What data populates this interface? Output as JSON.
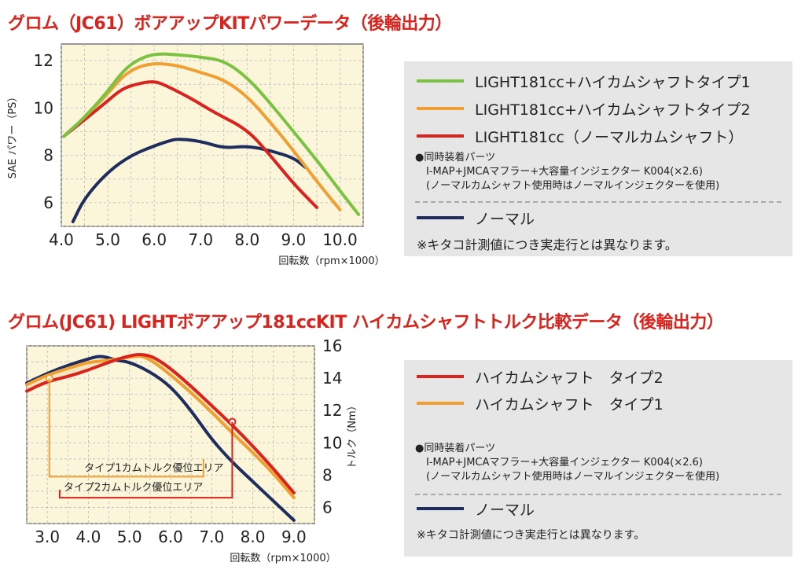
{
  "chart_data": [
    {
      "type": "line",
      "title": "グロム（JC61）ボアアップKITパワーデータ（後輪出力）",
      "xlabel": "回転数（rpm×1000）",
      "ylabel": "SAE パワー（PS）",
      "xlim": [
        4.0,
        10.5
      ],
      "ylim": [
        5.0,
        12.7
      ],
      "x_ticks": [
        "4.0",
        "5.0",
        "6.0",
        "7.0",
        "8.0",
        "9.0",
        "10.0"
      ],
      "y_ticks": [
        "6",
        "8",
        "10",
        "12"
      ],
      "x_tick_values": [
        4,
        5,
        6,
        7,
        8,
        9,
        10
      ],
      "y_tick_values": [
        6,
        8,
        10,
        12
      ],
      "series": [
        {
          "name": "LIGHT181cc+ハイカムシャフトタイプ1",
          "color": "#7cc242",
          "x": [
            4.05,
            4.5,
            5.0,
            5.3,
            5.6,
            6.0,
            6.5,
            7.0,
            7.5,
            8.0,
            8.5,
            9.0,
            9.5,
            10.0,
            10.4
          ],
          "y": [
            8.8,
            9.6,
            10.7,
            11.5,
            12.0,
            12.3,
            12.25,
            12.15,
            12.0,
            11.3,
            10.2,
            9.0,
            7.8,
            6.5,
            5.5
          ]
        },
        {
          "name": "LIGHT181cc+ハイカムシャフトタイプ2",
          "color": "#f0a033",
          "x": [
            4.05,
            4.5,
            5.0,
            5.3,
            5.6,
            6.0,
            6.5,
            7.0,
            7.5,
            8.0,
            8.5,
            9.0,
            9.5,
            10.0
          ],
          "y": [
            8.8,
            9.6,
            10.6,
            11.3,
            11.7,
            11.9,
            11.8,
            11.5,
            11.2,
            10.5,
            9.4,
            8.2,
            6.9,
            5.7
          ]
        },
        {
          "name": "LIGHT181cc（ノーマルカムシャフト）",
          "color": "#d9231d",
          "x": [
            4.05,
            4.5,
            5.0,
            5.3,
            5.6,
            6.0,
            6.3,
            6.8,
            7.3,
            8.0,
            8.5,
            9.0,
            9.5
          ],
          "y": [
            8.8,
            9.5,
            10.3,
            10.8,
            11.0,
            11.15,
            10.9,
            10.4,
            9.8,
            9.1,
            8.0,
            6.8,
            5.8
          ]
        },
        {
          "name": "ノーマル",
          "color": "#1f2d5e",
          "x": [
            4.25,
            4.5,
            5.0,
            5.5,
            6.0,
            6.3,
            6.5,
            7.0,
            7.5,
            8.0,
            8.5,
            9.0,
            9.25
          ],
          "y": [
            5.2,
            6.2,
            7.3,
            8.0,
            8.4,
            8.6,
            8.7,
            8.6,
            8.3,
            8.4,
            8.2,
            7.9,
            7.5
          ]
        }
      ]
    },
    {
      "type": "line",
      "title": "グロム(JC61) LIGHTボアアップ181ccKIT ハイカムシャフトトルク比較データ（後輪出力）",
      "xlabel": "回転数（rpm×1000）",
      "ylabel": "トルク（Nm）",
      "xlim": [
        2.5,
        9.5
      ],
      "ylim": [
        5.0,
        16.0
      ],
      "x_ticks": [
        "3.0",
        "4.0",
        "5.0",
        "6.0",
        "7.0",
        "8.0",
        "9.0"
      ],
      "y_ticks": [
        "6",
        "8",
        "10",
        "12",
        "14",
        "16"
      ],
      "x_tick_values": [
        3,
        4,
        5,
        6,
        7,
        8,
        9
      ],
      "y_tick_values": [
        6,
        8,
        10,
        12,
        14,
        16
      ],
      "series": [
        {
          "name": "ハイカムシャフト　タイプ2",
          "color": "#d9231d",
          "x": [
            2.5,
            3.0,
            3.5,
            4.0,
            4.5,
            5.0,
            5.3,
            5.6,
            6.0,
            6.5,
            7.0,
            7.5,
            8.0,
            8.5,
            9.0
          ],
          "y": [
            13.2,
            13.8,
            14.1,
            14.5,
            15.0,
            15.4,
            15.5,
            15.3,
            14.6,
            13.5,
            12.3,
            11.1,
            9.8,
            8.4,
            6.9
          ]
        },
        {
          "name": "ハイカムシャフト　タイプ1",
          "color": "#f0a033",
          "x": [
            2.5,
            3.0,
            3.5,
            4.0,
            4.5,
            5.0,
            5.3,
            5.6,
            6.0,
            6.5,
            7.0,
            7.5,
            8.0,
            8.5,
            9.0
          ],
          "y": [
            13.6,
            14.2,
            14.6,
            15.0,
            15.1,
            15.3,
            15.4,
            15.0,
            14.2,
            13.1,
            11.9,
            10.6,
            9.4,
            8.1,
            6.6
          ]
        },
        {
          "name": "ノーマル",
          "color": "#1f2d5e",
          "x": [
            2.5,
            3.0,
            3.5,
            4.0,
            4.3,
            4.7,
            5.0,
            5.5,
            6.0,
            6.5,
            7.0,
            7.5,
            8.0,
            8.5,
            9.0
          ],
          "y": [
            13.7,
            14.3,
            14.8,
            15.2,
            15.4,
            15.1,
            15.0,
            14.4,
            13.5,
            12.0,
            10.2,
            8.8,
            7.6,
            6.4,
            5.2
          ]
        }
      ],
      "annotations": [
        "タイプ1カムトルク優位エリア",
        "タイプ2カムトルク優位エリア"
      ]
    }
  ],
  "legend1": {
    "items": [
      {
        "label": "LIGHT181cc+ハイカムシャフトタイプ1",
        "color": "#7cc242"
      },
      {
        "label": "LIGHT181cc+ハイカムシャフトタイプ2",
        "color": "#f0a033"
      },
      {
        "label": "LIGHT181cc（ノーマルカムシャフト）",
        "color": "#d9231d"
      }
    ],
    "note_lines": [
      "●同時装着パーツ",
      "I-MAP+JMCAマフラー+大容量インジェクター K004(×2.6)",
      "(ノーマルカムシャフト使用時はノーマルインジェクターを使用)"
    ],
    "normal_label": "ノーマル",
    "normal_color": "#1f2d5e",
    "footnote": "※キタコ計測値につき実走行とは異なります。"
  },
  "legend2": {
    "items": [
      {
        "label": "ハイカムシャフト　タイプ2",
        "color": "#d9231d"
      },
      {
        "label": "ハイカムシャフト　タイプ1",
        "color": "#f0a033"
      }
    ],
    "note_lines": [
      "●同時装着パーツ",
      "I-MAP+JMCAマフラー+大容量インジェクター K004(×2.6)",
      "(ノーマルカムシャフト使用時はノーマルインジェクターを使用)"
    ],
    "normal_label": "ノーマル",
    "normal_color": "#1f2d5e",
    "footnote": "※キタコ計測値につき実走行とは異なります。"
  }
}
